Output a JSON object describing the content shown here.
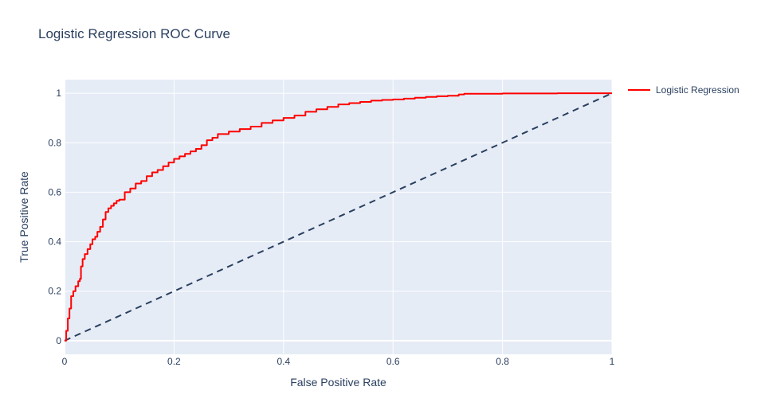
{
  "chart_data": {
    "type": "line",
    "title": "Logistic Regression ROC Curve",
    "xlabel": "False Positive Rate",
    "ylabel": "True Positive Rate",
    "xlim": [
      0,
      1
    ],
    "ylim": [
      -0.055,
      1.055
    ],
    "x_ticks": [
      0,
      0.2,
      0.4,
      0.6,
      0.8,
      1
    ],
    "x_tick_labels": [
      "0",
      "0.2",
      "0.4",
      "0.6",
      "0.8",
      "1"
    ],
    "y_ticks": [
      0,
      0.2,
      0.4,
      0.6,
      0.8,
      1
    ],
    "y_tick_labels": [
      "0",
      "0.2",
      "0.4",
      "0.6",
      "0.8",
      "1"
    ],
    "grid": true,
    "legend_position": "right",
    "colors": {
      "plot_background": "#e5ecf6",
      "grid": "#ffffff",
      "text": "#2a3f5f",
      "roc_line": "#ff0000",
      "diagonal": "#2a3f5f"
    },
    "series": [
      {
        "name": "Logistic Regression",
        "x": [
          0,
          0.003,
          0.006,
          0.009,
          0.012,
          0.016,
          0.02,
          0.025,
          0.028,
          0.03,
          0.033,
          0.037,
          0.042,
          0.047,
          0.051,
          0.056,
          0.06,
          0.065,
          0.07,
          0.075,
          0.08,
          0.085,
          0.09,
          0.095,
          0.1,
          0.11,
          0.12,
          0.13,
          0.14,
          0.15,
          0.16,
          0.17,
          0.18,
          0.19,
          0.2,
          0.21,
          0.22,
          0.23,
          0.24,
          0.25,
          0.26,
          0.27,
          0.28,
          0.3,
          0.32,
          0.34,
          0.36,
          0.38,
          0.4,
          0.42,
          0.44,
          0.46,
          0.48,
          0.5,
          0.52,
          0.54,
          0.56,
          0.58,
          0.6,
          0.62,
          0.64,
          0.66,
          0.68,
          0.7,
          0.72,
          0.73,
          0.75,
          0.8,
          0.85,
          0.9,
          0.95,
          1.0
        ],
        "y": [
          0,
          0.04,
          0.09,
          0.13,
          0.18,
          0.2,
          0.22,
          0.24,
          0.25,
          0.3,
          0.33,
          0.35,
          0.37,
          0.39,
          0.41,
          0.42,
          0.44,
          0.46,
          0.49,
          0.52,
          0.535,
          0.545,
          0.555,
          0.565,
          0.57,
          0.6,
          0.615,
          0.635,
          0.645,
          0.665,
          0.68,
          0.69,
          0.705,
          0.72,
          0.735,
          0.745,
          0.755,
          0.765,
          0.775,
          0.79,
          0.81,
          0.82,
          0.835,
          0.845,
          0.855,
          0.865,
          0.88,
          0.89,
          0.9,
          0.91,
          0.925,
          0.935,
          0.945,
          0.955,
          0.96,
          0.965,
          0.97,
          0.973,
          0.975,
          0.978,
          0.982,
          0.985,
          0.988,
          0.99,
          0.995,
          0.998,
          0.998,
          0.999,
          0.999,
          1.0,
          1.0,
          1.0
        ]
      },
      {
        "x": [
          0,
          1
        ],
        "y": [
          0,
          1
        ],
        "dashed": true
      }
    ]
  }
}
